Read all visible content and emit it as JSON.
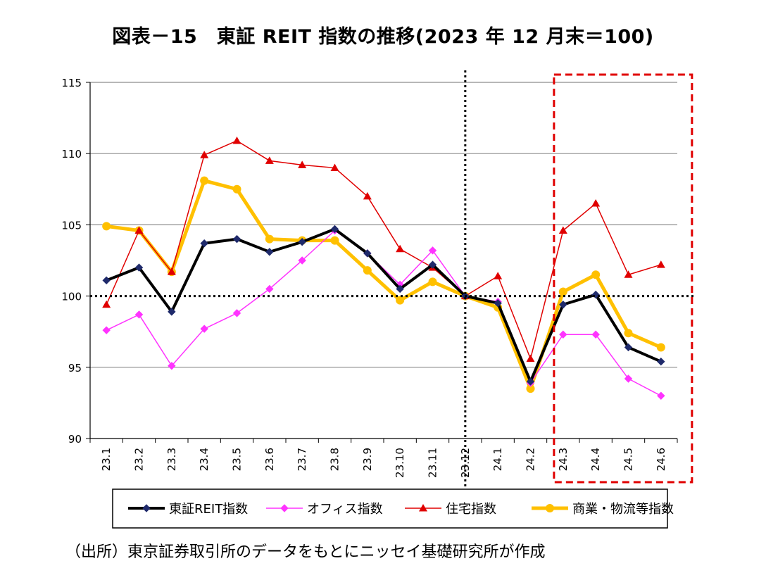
{
  "title": "図表－15　東証 REIT 指数の推移(2023 年 12 月末＝100)",
  "source": "（出所）東京証券取引所のデータをもとにニッセイ基礎研究所が作成",
  "chart_data": {
    "type": "line",
    "categories": [
      "23.1",
      "23.2",
      "23.3",
      "23.4",
      "23.5",
      "23.6",
      "23.7",
      "23.8",
      "23.9",
      "23.10",
      "23.11",
      "23.12",
      "24.1",
      "24.2",
      "24.3",
      "24.4",
      "24.5",
      "24.6"
    ],
    "ylim": [
      90,
      115
    ],
    "yticks": [
      90,
      95,
      100,
      105,
      110,
      115
    ],
    "xlabel": "",
    "ylabel": "",
    "grid": true,
    "reference_line": 100,
    "vertical_marker_category": "23.12",
    "highlight_range": [
      "24.3",
      "24.6"
    ],
    "legend_position": "bottom",
    "series": [
      {
        "name": "東証REIT指数",
        "color": "#000000",
        "marker": "diamond",
        "marker_color": "#1f2a6b",
        "values": [
          101.1,
          102.0,
          98.9,
          103.7,
          104.0,
          103.1,
          103.8,
          104.7,
          103.0,
          100.5,
          102.2,
          100.0,
          99.5,
          94.0,
          99.4,
          100.1,
          96.4,
          95.4
        ]
      },
      {
        "name": "オフィス指数",
        "color": "#ff33ff",
        "marker": "diamond",
        "marker_color": "#ff33ff",
        "values": [
          97.6,
          98.7,
          95.1,
          97.7,
          98.8,
          100.5,
          102.5,
          104.6,
          103.0,
          100.8,
          103.2,
          100.0,
          99.6,
          93.9,
          97.3,
          97.3,
          94.2,
          93.0
        ]
      },
      {
        "name": "住宅指数",
        "color": "#e00000",
        "marker": "triangle",
        "marker_color": "#e00000",
        "values": [
          99.4,
          104.6,
          101.7,
          109.9,
          110.9,
          109.5,
          109.2,
          109.0,
          107.0,
          103.3,
          102.0,
          100.0,
          101.4,
          95.6,
          104.6,
          106.5,
          101.5,
          102.2
        ]
      },
      {
        "name": "商業・物流等指数",
        "color": "#ffc000",
        "marker": "circle",
        "marker_color": "#ffc000",
        "values": [
          104.9,
          104.6,
          101.7,
          108.1,
          107.5,
          104.0,
          103.9,
          103.9,
          101.8,
          99.7,
          101.0,
          100.0,
          99.2,
          93.5,
          100.3,
          101.5,
          97.4,
          96.4
        ]
      }
    ]
  }
}
